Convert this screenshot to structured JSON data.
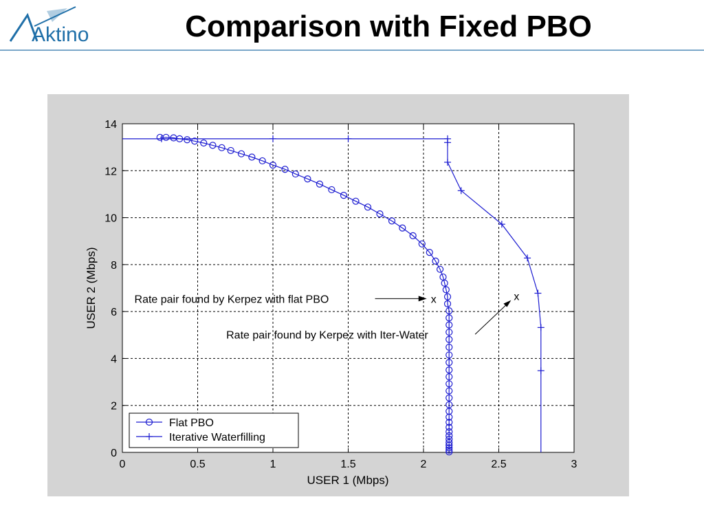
{
  "slide": {
    "title": "Comparison with Fixed PBO",
    "logo_text": "Aktino",
    "logo_color": "#1f6fa8"
  },
  "chart_data": {
    "type": "line",
    "title": "",
    "xlabel": "USER 1 (Mbps)",
    "ylabel": "USER 2 (Mbps)",
    "xlim": [
      0,
      3
    ],
    "ylim": [
      0,
      14
    ],
    "xticks": [
      "0",
      "0.5",
      "1",
      "1.5",
      "2",
      "2.5",
      "3"
    ],
    "yticks": [
      "0",
      "2",
      "4",
      "6",
      "8",
      "10",
      "12",
      "14"
    ],
    "grid": true,
    "legend_position": "bottom-left",
    "series_color": "#1a1ad0",
    "series": [
      {
        "name": "Flat PBO",
        "marker": "circle",
        "points": [
          [
            0.25,
            13.42
          ],
          [
            0.29,
            13.42
          ],
          [
            0.34,
            13.4
          ],
          [
            0.38,
            13.36
          ],
          [
            0.43,
            13.32
          ],
          [
            0.48,
            13.26
          ],
          [
            0.54,
            13.18
          ],
          [
            0.6,
            13.08
          ],
          [
            0.66,
            12.98
          ],
          [
            0.72,
            12.86
          ],
          [
            0.79,
            12.72
          ],
          [
            0.86,
            12.58
          ],
          [
            0.93,
            12.42
          ],
          [
            1.0,
            12.24
          ],
          [
            1.08,
            12.06
          ],
          [
            1.15,
            11.86
          ],
          [
            1.23,
            11.65
          ],
          [
            1.31,
            11.43
          ],
          [
            1.39,
            11.19
          ],
          [
            1.47,
            10.95
          ],
          [
            1.55,
            10.7
          ],
          [
            1.63,
            10.45
          ],
          [
            1.71,
            10.16
          ],
          [
            1.79,
            9.86
          ],
          [
            1.86,
            9.56
          ],
          [
            1.93,
            9.23
          ],
          [
            1.99,
            8.88
          ],
          [
            2.04,
            8.52
          ],
          [
            2.08,
            8.15
          ],
          [
            2.11,
            7.8
          ],
          [
            2.13,
            7.47
          ],
          [
            2.14,
            7.21
          ],
          [
            2.15,
            6.93
          ],
          [
            2.16,
            6.63
          ],
          [
            2.16,
            6.33
          ],
          [
            2.17,
            6.03
          ],
          [
            2.17,
            5.73
          ],
          [
            2.17,
            5.43
          ],
          [
            2.17,
            5.12
          ],
          [
            2.17,
            4.81
          ],
          [
            2.17,
            4.48
          ],
          [
            2.17,
            4.15
          ],
          [
            2.17,
            3.83
          ],
          [
            2.17,
            3.51
          ],
          [
            2.17,
            3.22
          ],
          [
            2.17,
            2.92
          ],
          [
            2.17,
            2.62
          ],
          [
            2.17,
            2.32
          ],
          [
            2.17,
            2.03
          ],
          [
            2.17,
            1.75
          ],
          [
            2.17,
            1.5
          ],
          [
            2.17,
            1.28
          ],
          [
            2.17,
            1.07
          ],
          [
            2.17,
            0.88
          ],
          [
            2.17,
            0.71
          ],
          [
            2.17,
            0.56
          ],
          [
            2.17,
            0.42
          ],
          [
            2.17,
            0.3
          ],
          [
            2.17,
            0.19
          ],
          [
            2.17,
            0.1
          ],
          [
            2.17,
            0.02
          ]
        ]
      },
      {
        "name": "Iterative Waterfilling",
        "marker": "plus",
        "points": [
          [
            0.0,
            13.36
          ],
          [
            0.26,
            13.36
          ],
          [
            1.0,
            13.36
          ],
          [
            1.5,
            13.36
          ],
          [
            2.16,
            13.36
          ],
          [
            2.16,
            13.2
          ],
          [
            2.16,
            12.36
          ],
          [
            2.25,
            11.15
          ],
          [
            2.52,
            9.72
          ],
          [
            2.69,
            8.28
          ],
          [
            2.76,
            6.78
          ],
          [
            2.78,
            5.32
          ],
          [
            2.78,
            3.48
          ],
          [
            2.78,
            0.0
          ]
        ],
        "marker_indices": [
          1,
          2,
          3,
          4,
          5,
          6,
          7,
          8,
          9,
          10,
          11,
          12
        ]
      }
    ],
    "annotations": [
      {
        "text": "Rate pair found by Kerpez with flat PBO",
        "point": [
          2.04,
          6.55
        ],
        "point_label": "x",
        "text_anchor": [
          0.08,
          6.55
        ]
      },
      {
        "text": "Rate pair found by Kerpez with Iter-Water",
        "point": [
          2.6,
          6.6
        ],
        "point_label": "x",
        "text_anchor": [
          0.69,
          5.03
        ]
      }
    ]
  }
}
